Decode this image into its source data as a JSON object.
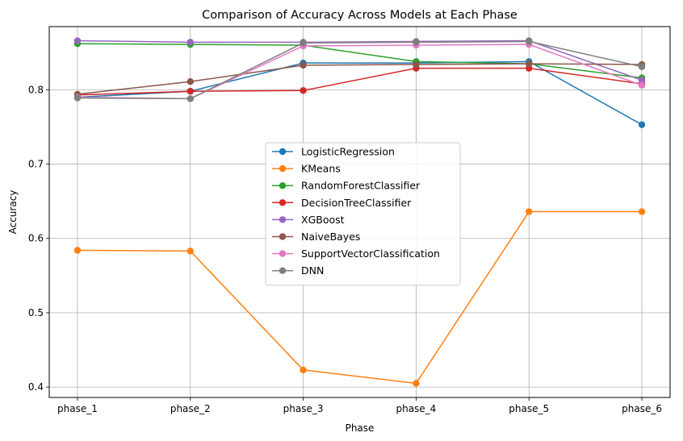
{
  "chart_data": {
    "type": "line",
    "title": "Comparison of Accuracy Across Models at Each Phase",
    "xlabel": "Phase",
    "ylabel": "Accuracy",
    "categories": [
      "phase_1",
      "phase_2",
      "phase_3",
      "phase_4",
      "phase_5",
      "phase_6"
    ],
    "ylim": [
      0.386,
      0.885
    ],
    "yticks": [
      0.4,
      0.5,
      0.6,
      0.7,
      0.8
    ],
    "grid": true,
    "legend_position": "center",
    "series": [
      {
        "name": "LogisticRegression",
        "color": "#1f77b4",
        "values": [
          0.79,
          0.798,
          0.836,
          0.836,
          0.838,
          0.753
        ]
      },
      {
        "name": "KMeans",
        "color": "#ff7f0e",
        "values": [
          0.584,
          0.583,
          0.423,
          0.405,
          0.636,
          0.636
        ]
      },
      {
        "name": "RandomForestClassifier",
        "color": "#2ca02c",
        "values": [
          0.862,
          0.861,
          0.86,
          0.838,
          0.835,
          0.816
        ]
      },
      {
        "name": "DecisionTreeClassifier",
        "color": "#d62728",
        "values": [
          0.793,
          0.798,
          0.799,
          0.829,
          0.829,
          0.808
        ]
      },
      {
        "name": "XGBoost",
        "color": "#9467bd",
        "values": [
          0.866,
          0.864,
          0.864,
          0.865,
          0.866,
          0.813
        ]
      },
      {
        "name": "NaiveBayes",
        "color": "#8c564b",
        "values": [
          0.794,
          0.811,
          0.833,
          0.834,
          0.835,
          0.834
        ]
      },
      {
        "name": "SupportVectorClassification",
        "color": "#e377c2",
        "values": [
          0.79,
          0.788,
          0.859,
          0.86,
          0.861,
          0.806
        ]
      },
      {
        "name": "DNN",
        "color": "#7f7f7f",
        "values": [
          0.789,
          0.788,
          0.863,
          0.864,
          0.865,
          0.831
        ]
      }
    ]
  }
}
